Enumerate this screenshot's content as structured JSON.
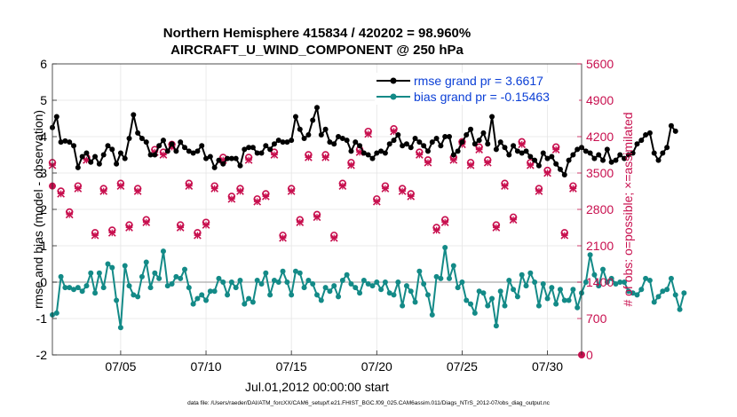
{
  "chart_data": {
    "type": "line",
    "title": "Northern Hemisphere 415834 / 420202 = 98.960%",
    "subtitle": "AIRCRAFT_U_WIND_COMPONENT @ 250 hPa",
    "xlabel": "Jul.01,2012 00:00:00 start",
    "ylabel": "rmse and bias (model - observation)",
    "ylabel_right": "# of obs: o=possible; ×=assimilated",
    "xlim": [
      1,
      32
    ],
    "ylim": [
      -2,
      6
    ],
    "ylim_right": [
      0,
      5600
    ],
    "x_ticks": [
      5,
      10,
      15,
      20,
      25,
      30
    ],
    "x_tick_labels": [
      "07/05",
      "07/10",
      "07/15",
      "07/20",
      "07/25",
      "07/30"
    ],
    "y_ticks": [
      "-2",
      "-1",
      "0",
      "1",
      "2",
      "3",
      "4",
      "5",
      "6"
    ],
    "y_right_ticks": [
      "0",
      "700",
      "1400",
      "2100",
      "2800",
      "3500",
      "4200",
      "4900",
      "5600"
    ],
    "grid": true,
    "legend_position": "top-right",
    "x_start": 1,
    "x_step": 0.25,
    "series": [
      {
        "name": "rmse grand pr = 3.6617",
        "color": "#000000",
        "marker": "filled-circle",
        "axis": "left",
        "values": [
          4.25,
          4.55,
          3.85,
          3.88,
          3.85,
          3.75,
          3.15,
          3.45,
          3.55,
          3.3,
          3.45,
          3.25,
          3.5,
          3.75,
          3.65,
          3.25,
          3.55,
          3.4,
          3.95,
          4.6,
          4.1,
          3.95,
          3.85,
          3.5,
          3.5,
          3.75,
          3.9,
          3.6,
          3.8,
          3.6,
          3.85,
          3.7,
          3.6,
          3.55,
          3.6,
          3.75,
          3.4,
          3.45,
          3.15,
          3.35,
          3.25,
          3.4,
          3.4,
          3.4,
          3.2,
          3.65,
          3.7,
          3.7,
          3.55,
          3.55,
          3.75,
          3.65,
          3.8,
          3.9,
          3.85,
          3.85,
          3.9,
          4.55,
          4.2,
          3.95,
          4.05,
          4.45,
          4.8,
          4.05,
          4.2,
          3.85,
          3.8,
          4.0,
          3.95,
          3.9,
          3.6,
          3.85,
          3.75,
          3.55,
          3.5,
          3.4,
          3.55,
          3.6,
          3.55,
          3.8,
          3.9,
          4.05,
          3.75,
          3.8,
          3.7,
          3.95,
          3.85,
          3.75,
          3.6,
          3.85,
          3.95,
          3.75,
          4.0,
          4.0,
          3.5,
          3.6,
          3.85,
          4.05,
          4.2,
          3.8,
          3.9,
          4.1,
          3.8,
          4.55,
          3.65,
          3.85,
          3.7,
          3.5,
          3.75,
          3.6,
          3.55,
          3.6,
          3.45,
          3.35,
          3.2,
          3.55,
          3.4,
          3.45,
          3.25,
          3.1,
          2.95,
          3.35,
          3.5,
          3.65,
          3.7,
          3.6,
          3.55,
          3.4,
          3.5,
          3.35,
          3.65,
          3.3,
          3.35,
          3.5,
          3.4,
          3.5,
          3.55,
          3.8,
          3.9,
          4.05,
          4.1,
          3.55,
          3.35,
          3.55,
          3.7,
          4.3,
          4.15
        ]
      },
      {
        "name": "bias grand pr = -0.15463",
        "color": "#138a87",
        "marker": "filled-circle",
        "axis": "left",
        "values": [
          -0.9,
          -0.85,
          0.15,
          -0.15,
          -0.15,
          -0.2,
          -0.15,
          -0.25,
          -0.1,
          0.25,
          -0.3,
          0.25,
          -0.15,
          0.5,
          0.4,
          -0.5,
          -1.25,
          0.45,
          -0.1,
          -0.35,
          -0.4,
          0.15,
          0.55,
          -0.15,
          0.25,
          0.1,
          0.85,
          -0.1,
          -0.05,
          0.15,
          0.1,
          0.35,
          -0.15,
          -0.6,
          -0.45,
          -0.35,
          -0.5,
          -0.25,
          -0.25,
          0.1,
          0.0,
          -0.35,
          0.0,
          -0.15,
          0.05,
          -0.6,
          -0.45,
          -0.55,
          0.05,
          -0.05,
          0.25,
          -0.35,
          0.05,
          0.0,
          0.3,
          0.0,
          -0.35,
          0.3,
          0.25,
          -0.15,
          0.05,
          -0.05,
          -0.35,
          -0.5,
          -0.15,
          -0.25,
          -0.1,
          -0.4,
          0.05,
          0.2,
          -0.05,
          -0.15,
          -0.3,
          0.05,
          -0.05,
          -0.1,
          0.0,
          -0.2,
          0.0,
          -0.3,
          -0.35,
          0.0,
          -0.65,
          -0.1,
          -0.25,
          -0.55,
          0.3,
          -0.05,
          -0.35,
          -0.9,
          0.15,
          0.1,
          0.95,
          0.1,
          0.45,
          -0.15,
          0.0,
          -0.5,
          -0.6,
          -0.85,
          -0.25,
          -0.3,
          -0.65,
          -0.45,
          -1.2,
          -0.25,
          -0.65,
          0.05,
          -0.2,
          -0.4,
          0.2,
          -0.1,
          0.25,
          0.0,
          -0.65,
          -0.05,
          -0.45,
          -0.15,
          -0.6,
          -0.2,
          -0.5,
          -0.5,
          -0.2,
          -0.7,
          -0.3,
          0.0,
          0.75,
          0.2,
          -0.1,
          0.35,
          0.0,
          0.1,
          -0.05,
          0.0,
          0.0,
          -0.25,
          -0.3,
          -0.35,
          -0.2,
          0.1,
          0.05,
          -0.55,
          -0.4,
          -0.25,
          -0.2,
          0.1,
          -0.35,
          -0.75,
          -0.3
        ]
      },
      {
        "name": "possible",
        "color": "#c8104f",
        "marker": "open-circle",
        "axis": "right",
        "x_start": 1,
        "x_step": 0.5,
        "values": [
          3700,
          3150,
          2750,
          3250,
          3800,
          2350,
          3200,
          2400,
          3300,
          2500,
          3200,
          2600,
          3950,
          3900,
          4050,
          2500,
          3300,
          2350,
          2550,
          3250,
          3800,
          3050,
          3200,
          3800,
          3000,
          3100,
          3900,
          2300,
          3200,
          2600,
          3850,
          2700,
          3850,
          2300,
          3300,
          3700,
          3950,
          4300,
          3000,
          3250,
          4350,
          3200,
          3100,
          3900,
          3750,
          2450,
          2600,
          3800,
          4100,
          3700,
          4000,
          3750,
          2500,
          3300,
          2650,
          4100,
          3700,
          3200,
          3550,
          4000,
          2350,
          3250
        ]
      },
      {
        "name": "assimilated",
        "color": "#c8104f",
        "marker": "cross",
        "axis": "right",
        "x_start": 1,
        "x_step": 0.5,
        "values": [
          3650,
          3100,
          2700,
          3200,
          3750,
          2300,
          3150,
          2350,
          3250,
          2450,
          3150,
          2550,
          3900,
          3850,
          4000,
          2450,
          3250,
          2300,
          2500,
          3200,
          3750,
          3000,
          3150,
          3750,
          2950,
          3050,
          3850,
          2250,
          3150,
          2550,
          3800,
          2650,
          3800,
          2250,
          3250,
          3650,
          3900,
          4250,
          2950,
          3200,
          4300,
          3150,
          3050,
          3850,
          3700,
          2400,
          2550,
          3750,
          4050,
          3650,
          3950,
          3700,
          2450,
          3250,
          2600,
          4050,
          3650,
          3150,
          3500,
          3950,
          2300,
          3200
        ]
      }
    ],
    "isolated_points": [
      {
        "x": 1,
        "y_right": 3250
      },
      {
        "x": 32,
        "y_right": 0
      }
    ],
    "reference_line": {
      "y": 0,
      "color": "#b8b8b8"
    }
  },
  "footer": {
    "data_file": "data file: /Users/raeder/DAI/ATM_forcXX/CAM6_setup/f.e21.FHIST_BGC.f09_025.CAM6assim.011/Diags_NTrS_2012-07/obs_diag_output.nc"
  },
  "colors": {
    "left_axis": "#000000",
    "right_axis": "#c8104f",
    "legend_text": "#0b3fd6",
    "grid": "#e5e5e5"
  }
}
